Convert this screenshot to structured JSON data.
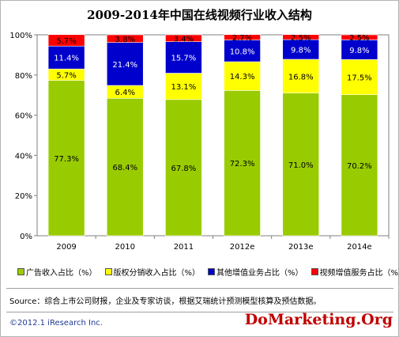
{
  "chart_data": {
    "type": "bar",
    "stacked": true,
    "title": "2009-2014年中国在线视频行业收入结构",
    "categories": [
      "2009",
      "2010",
      "2011",
      "2012e",
      "2013e",
      "2014e"
    ],
    "yticks": [
      "0%",
      "20%",
      "40%",
      "60%",
      "80%",
      "100%"
    ],
    "ylim": [
      0,
      100
    ],
    "series": [
      {
        "name": "广告收入占比（%）",
        "color": "#99cc00",
        "values": [
          77.3,
          68.4,
          67.8,
          72.3,
          71.0,
          70.2
        ],
        "labels": [
          "77.3%",
          "68.4%",
          "67.8%",
          "72.3%",
          "71.0%",
          "70.2%"
        ]
      },
      {
        "name": "版权分销收入占比（%）",
        "color": "#ffff00",
        "values": [
          5.7,
          6.4,
          13.1,
          14.3,
          16.8,
          17.5
        ],
        "labels": [
          "5.7%",
          "6.4%",
          "13.1%",
          "14.3%",
          "16.8%",
          "17.5%"
        ]
      },
      {
        "name": "其他增值业务占比（%）",
        "color": "#0000cc",
        "values": [
          11.4,
          21.4,
          15.7,
          10.8,
          9.8,
          9.8
        ],
        "labels": [
          "11.4%",
          "21.4%",
          "15.7%",
          "10.8%",
          "9.8%",
          "9.8%"
        ]
      },
      {
        "name": "视频增值服务占比（%）",
        "color": "#ff0000",
        "values": [
          5.7,
          3.8,
          3.4,
          2.7,
          2.5,
          2.5
        ],
        "labels": [
          "5.7%",
          "3.8%",
          "3.4%",
          "2.7%",
          "2.5%",
          "2.5%"
        ]
      }
    ],
    "legend_position": "bottom",
    "grid": false
  },
  "source": "Source：综合上市公司财报，企业及专家访谈，根据艾瑞统计预测模型核算及预估数据。",
  "copyright": "©2012.1 iResearch Inc.",
  "watermark": "DoMarketing.Org"
}
